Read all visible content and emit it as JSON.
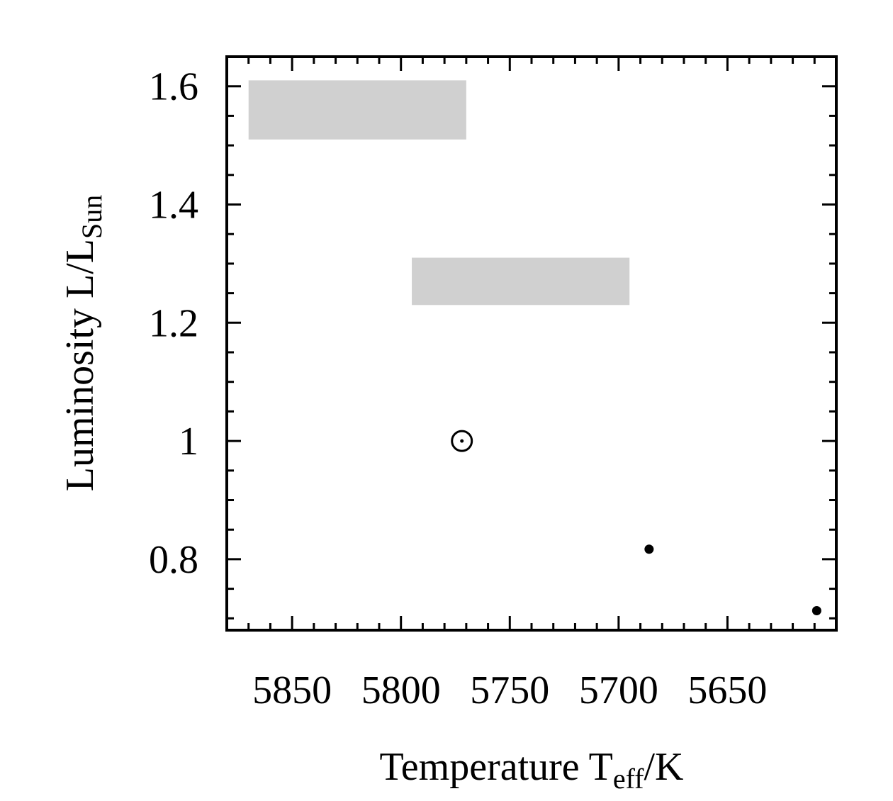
{
  "chart_data": {
    "type": "scatter",
    "xlabel": {
      "text": "Temperature T",
      "subscript": "eff",
      "unit": "/K"
    },
    "ylabel": {
      "text": "Luminosity L/L",
      "subscript": "Sun"
    },
    "xlim": [
      5880,
      5600
    ],
    "ylim": [
      0.68,
      1.65
    ],
    "x_reversed": true,
    "x_ticks": [
      5850,
      5800,
      5750,
      5700,
      5650
    ],
    "x_tick_labels": [
      "5850",
      "5800",
      "5750",
      "5700",
      "5650"
    ],
    "y_ticks": [
      0.8,
      1.0,
      1.2,
      1.4,
      1.6
    ],
    "y_tick_labels": [
      "0.8",
      "1",
      "1.2",
      "1.4",
      "1.6"
    ],
    "grid": false,
    "regions": [
      {
        "x": [
          5870,
          5770
        ],
        "y": [
          1.51,
          1.61
        ],
        "color": "#d0d0d0"
      },
      {
        "x": [
          5795,
          5695
        ],
        "y": [
          1.23,
          1.31
        ],
        "color": "#d0d0d0"
      }
    ],
    "points": [
      {
        "x": 5772,
        "y": 1.0,
        "marker": "sun-symbol"
      },
      {
        "x": 5686,
        "y": 0.817,
        "marker": "dot"
      },
      {
        "x": 5609,
        "y": 0.713,
        "marker": "dot"
      }
    ],
    "colors": {
      "axis": "#000000",
      "region": "#d0d0d0",
      "marker": "#000000"
    }
  }
}
